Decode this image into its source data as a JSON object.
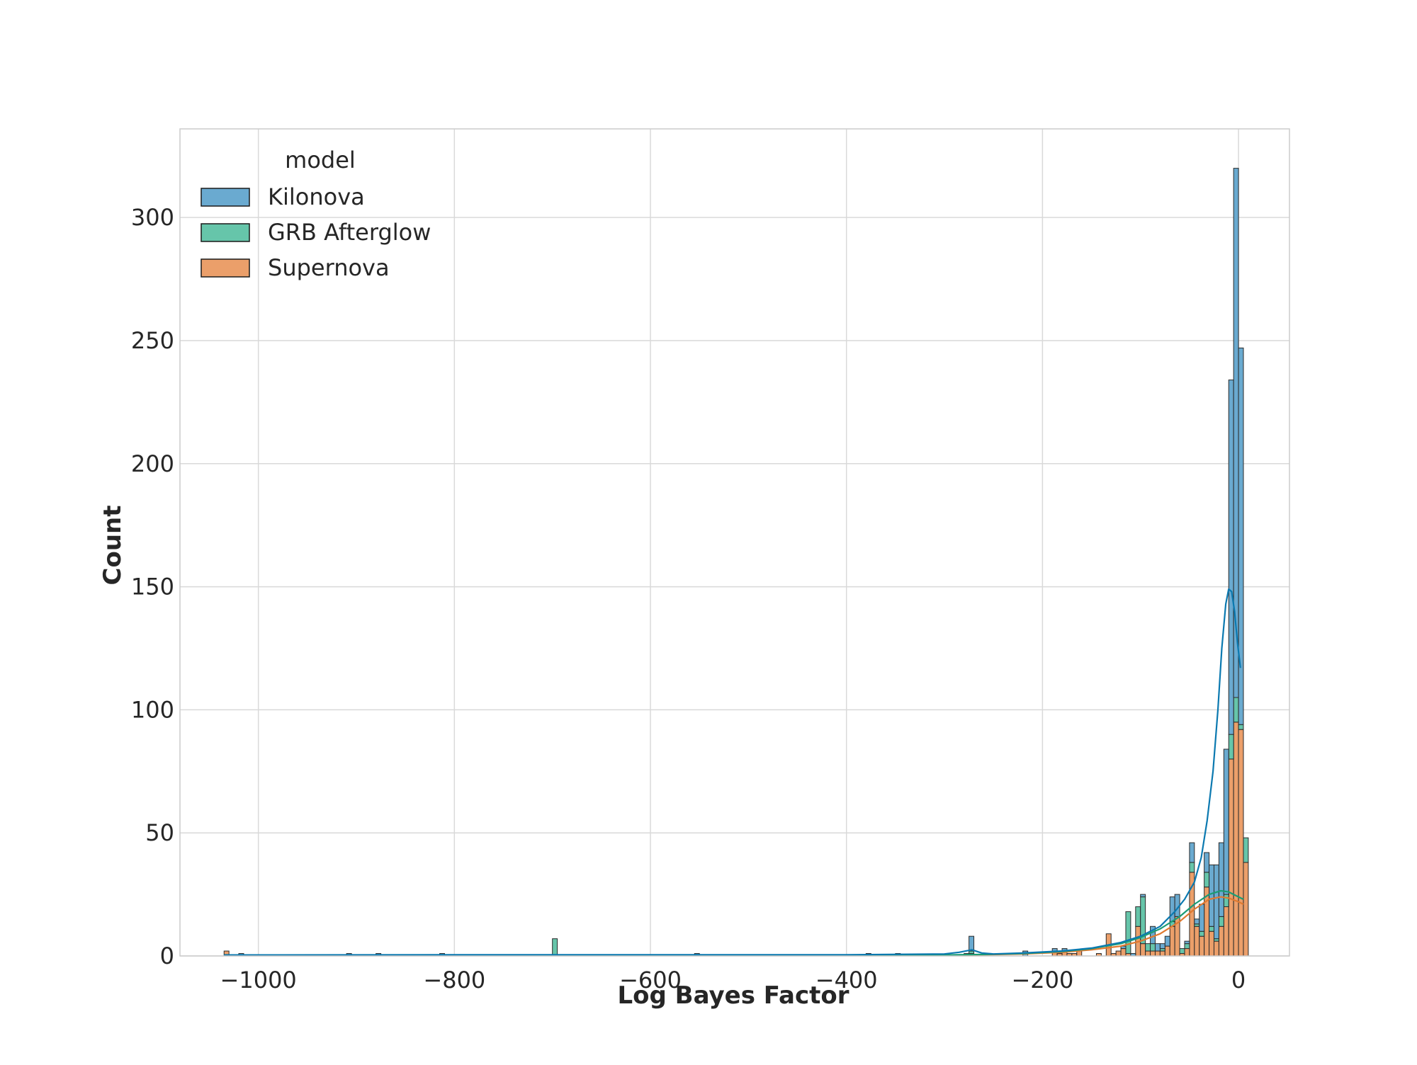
{
  "chart_data": {
    "type": "bar",
    "subtype": "stacked histogram with KDE curves",
    "xlabel": "Log Bayes Factor",
    "ylabel": "Count",
    "xlim": [
      -1080,
      52
    ],
    "ylim": [
      0,
      336
    ],
    "xticks": [
      -1000,
      -800,
      -600,
      -400,
      -200,
      0
    ],
    "xtick_labels": [
      "−1000",
      "−800",
      "−600",
      "−400",
      "−200",
      "0"
    ],
    "yticks": [
      0,
      50,
      100,
      150,
      200,
      250,
      300
    ],
    "ytick_labels": [
      "0",
      "50",
      "100",
      "150",
      "200",
      "250",
      "300"
    ],
    "grid": true,
    "bin_width": 5,
    "legend": {
      "title": "model",
      "placement": "top-left",
      "entries": [
        {
          "label": "Kilonova",
          "color": "#6aaad0"
        },
        {
          "label": "GRB Afterglow",
          "color": "#66c5aa"
        },
        {
          "label": "Supernova",
          "color": "#eb9f6a"
        }
      ]
    },
    "series": [
      {
        "name": "Supernova",
        "fill": "#eb9f6a",
        "line": "#e07a30",
        "bins": [
          [
            -1035,
            2
          ],
          [
            -275,
            1
          ],
          [
            -190,
            2
          ],
          [
            -185,
            1
          ],
          [
            -180,
            2
          ],
          [
            -175,
            1
          ],
          [
            -170,
            1
          ],
          [
            -165,
            2
          ],
          [
            -145,
            1
          ],
          [
            -135,
            9
          ],
          [
            -130,
            1
          ],
          [
            -125,
            2
          ],
          [
            -120,
            3
          ],
          [
            -115,
            1
          ],
          [
            -105,
            12
          ],
          [
            -100,
            5
          ],
          [
            -95,
            2
          ],
          [
            -90,
            2
          ],
          [
            -85,
            2
          ],
          [
            -80,
            2
          ],
          [
            -75,
            4
          ],
          [
            -70,
            12
          ],
          [
            -65,
            16
          ],
          [
            -60,
            1
          ],
          [
            -55,
            3
          ],
          [
            -50,
            34
          ],
          [
            -45,
            12
          ],
          [
            -40,
            8
          ],
          [
            -35,
            28
          ],
          [
            -30,
            10
          ],
          [
            -25,
            6
          ],
          [
            -20,
            12
          ],
          [
            -15,
            20
          ],
          [
            -10,
            80
          ],
          [
            -5,
            95
          ],
          [
            0,
            92
          ],
          [
            5,
            38
          ]
        ],
        "kde": [
          [
            -1035,
            0.2
          ],
          [
            -300,
            0.3
          ],
          [
            -260,
            0.5
          ],
          [
            -220,
            0.8
          ],
          [
            -180,
            1.5
          ],
          [
            -150,
            2.5
          ],
          [
            -120,
            4
          ],
          [
            -100,
            6
          ],
          [
            -80,
            9
          ],
          [
            -60,
            14
          ],
          [
            -45,
            19
          ],
          [
            -30,
            23
          ],
          [
            -18,
            24
          ],
          [
            -10,
            23.5
          ],
          [
            0,
            22
          ],
          [
            5,
            21
          ]
        ]
      },
      {
        "name": "GRB Afterglow",
        "fill": "#66c5aa",
        "line": "#1c9c75",
        "bins": [
          [
            -700,
            7
          ],
          [
            -275,
            1
          ],
          [
            -185,
            1
          ],
          [
            -115,
            17
          ],
          [
            -105,
            8
          ],
          [
            -100,
            19
          ],
          [
            -95,
            3
          ],
          [
            -90,
            3
          ],
          [
            -80,
            1
          ],
          [
            -70,
            2
          ],
          [
            -60,
            2
          ],
          [
            -55,
            2
          ],
          [
            -50,
            4
          ],
          [
            -45,
            1
          ],
          [
            -40,
            2
          ],
          [
            -35,
            6
          ],
          [
            -30,
            2
          ],
          [
            -25,
            1
          ],
          [
            -20,
            4
          ],
          [
            -15,
            5
          ],
          [
            -10,
            10
          ],
          [
            -5,
            10
          ],
          [
            0,
            2
          ],
          [
            5,
            10
          ]
        ],
        "kde": [
          [
            -1035,
            0.3
          ],
          [
            -300,
            0.4
          ],
          [
            -260,
            0.6
          ],
          [
            -220,
            1
          ],
          [
            -180,
            1.8
          ],
          [
            -150,
            3
          ],
          [
            -120,
            5
          ],
          [
            -100,
            7.5
          ],
          [
            -80,
            11
          ],
          [
            -60,
            16
          ],
          [
            -45,
            21
          ],
          [
            -30,
            25
          ],
          [
            -18,
            26.5
          ],
          [
            -10,
            26
          ],
          [
            0,
            24
          ],
          [
            5,
            23
          ]
        ]
      },
      {
        "name": "Kilonova",
        "fill": "#6aaad0",
        "line": "#0b79b0",
        "bins": [
          [
            -1020,
            1
          ],
          [
            -910,
            1
          ],
          [
            -880,
            1
          ],
          [
            -815,
            1
          ],
          [
            -555,
            1
          ],
          [
            -380,
            1
          ],
          [
            -350,
            1
          ],
          [
            -280,
            1
          ],
          [
            -275,
            6
          ],
          [
            -220,
            2
          ],
          [
            -190,
            1
          ],
          [
            -180,
            1
          ],
          [
            -120,
            1
          ],
          [
            -110,
            1
          ],
          [
            -100,
            1
          ],
          [
            -90,
            7
          ],
          [
            -85,
            3
          ],
          [
            -80,
            2
          ],
          [
            -75,
            4
          ],
          [
            -70,
            10
          ],
          [
            -65,
            9
          ],
          [
            -55,
            1
          ],
          [
            -50,
            8
          ],
          [
            -45,
            2
          ],
          [
            -40,
            11
          ],
          [
            -35,
            8
          ],
          [
            -30,
            25
          ],
          [
            -25,
            30
          ],
          [
            -20,
            30
          ],
          [
            -15,
            59
          ],
          [
            -10,
            144
          ],
          [
            -5,
            215
          ],
          [
            0,
            153
          ]
        ],
        "kde": [
          [
            -1035,
            0.4
          ],
          [
            -700,
            0.5
          ],
          [
            -400,
            0.5
          ],
          [
            -300,
            0.8
          ],
          [
            -285,
            1.5
          ],
          [
            -272,
            2.5
          ],
          [
            -262,
            1.2
          ],
          [
            -250,
            0.8
          ],
          [
            -220,
            1.2
          ],
          [
            -180,
            2
          ],
          [
            -150,
            3.2
          ],
          [
            -120,
            5.5
          ],
          [
            -100,
            8
          ],
          [
            -80,
            12
          ],
          [
            -65,
            18
          ],
          [
            -55,
            23
          ],
          [
            -45,
            30
          ],
          [
            -38,
            40
          ],
          [
            -32,
            55
          ],
          [
            -26,
            75
          ],
          [
            -21,
            100
          ],
          [
            -17,
            125
          ],
          [
            -13,
            143
          ],
          [
            -10,
            149
          ],
          [
            -7,
            148
          ],
          [
            -4,
            140
          ],
          [
            -1,
            127
          ],
          [
            2,
            117
          ]
        ]
      }
    ]
  }
}
